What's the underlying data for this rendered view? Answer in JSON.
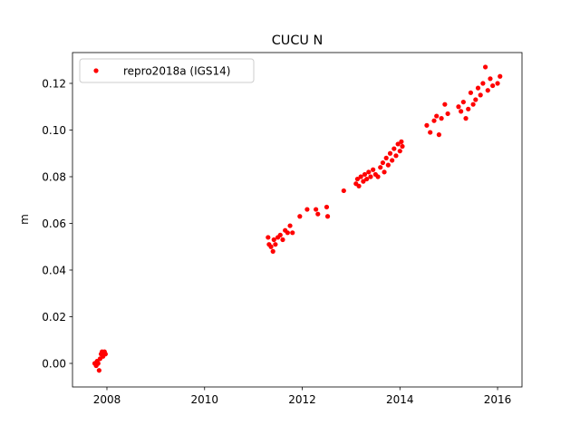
{
  "chart_data": {
    "type": "scatter",
    "title": "CUCU N",
    "y_label": "m",
    "xlim": [
      2007.295,
      2016.5
    ],
    "ylim": [
      -0.0101,
      0.1332
    ],
    "xticks": [
      2008,
      2010,
      2012,
      2014,
      2016
    ],
    "yticks": [
      {
        "value": 0,
        "label": "0.00"
      },
      {
        "value": 0.02,
        "label": "0.02"
      },
      {
        "value": 0.04,
        "label": "0.04"
      },
      {
        "value": 0.06,
        "label": "0.06"
      },
      {
        "value": 0.08,
        "label": "0.08"
      },
      {
        "value": 0.1,
        "label": "0.10"
      },
      {
        "value": 0.12,
        "label": "0.12"
      }
    ],
    "legend": "upper left",
    "series": [
      {
        "name": "repro2018a (IGS14)",
        "color": "#ff0000",
        "x": [
          2007.75,
          2007.78,
          2007.8,
          2007.82,
          2007.84,
          2007.86,
          2007.88,
          2007.9,
          2007.92,
          2007.95,
          2007.97,
          2011.3,
          2011.32,
          2011.36,
          2011.4,
          2011.42,
          2011.45,
          2011.5,
          2011.55,
          2011.6,
          2011.65,
          2011.7,
          2011.75,
          2011.8,
          2011.95,
          2012.1,
          2012.28,
          2012.32,
          2012.5,
          2012.52,
          2012.85,
          2013.1,
          2013.13,
          2013.16,
          2013.2,
          2013.25,
          2013.28,
          2013.32,
          2013.36,
          2013.4,
          2013.45,
          2013.5,
          2013.55,
          2013.6,
          2013.65,
          2013.68,
          2013.72,
          2013.76,
          2013.8,
          2013.84,
          2013.88,
          2013.92,
          2013.96,
          2014.0,
          2014.03,
          2014.05,
          2014.55,
          2014.62,
          2014.7,
          2014.75,
          2014.8,
          2014.85,
          2014.92,
          2014.98,
          2015.2,
          2015.25,
          2015.3,
          2015.35,
          2015.4,
          2015.45,
          2015.5,
          2015.55,
          2015.6,
          2015.65,
          2015.7,
          2015.75,
          2015.8,
          2015.85,
          2015.9,
          2016.0,
          2016.05
        ],
        "values": [
          0.0,
          -0.001,
          0.001,
          0.0,
          -0.003,
          0.002,
          0.004,
          0.005,
          0.003,
          0.005,
          0.004,
          0.054,
          0.051,
          0.05,
          0.048,
          0.053,
          0.051,
          0.054,
          0.055,
          0.053,
          0.057,
          0.056,
          0.059,
          0.056,
          0.063,
          0.066,
          0.066,
          0.064,
          0.067,
          0.063,
          0.074,
          0.077,
          0.079,
          0.076,
          0.08,
          0.078,
          0.081,
          0.079,
          0.082,
          0.08,
          0.083,
          0.081,
          0.08,
          0.084,
          0.086,
          0.082,
          0.088,
          0.085,
          0.09,
          0.087,
          0.092,
          0.089,
          0.094,
          0.091,
          0.095,
          0.093,
          0.102,
          0.099,
          0.104,
          0.106,
          0.098,
          0.105,
          0.111,
          0.107,
          0.11,
          0.108,
          0.112,
          0.105,
          0.109,
          0.116,
          0.111,
          0.113,
          0.118,
          0.115,
          0.12,
          0.127,
          0.117,
          0.122,
          0.119,
          0.12,
          0.123
        ]
      }
    ]
  }
}
